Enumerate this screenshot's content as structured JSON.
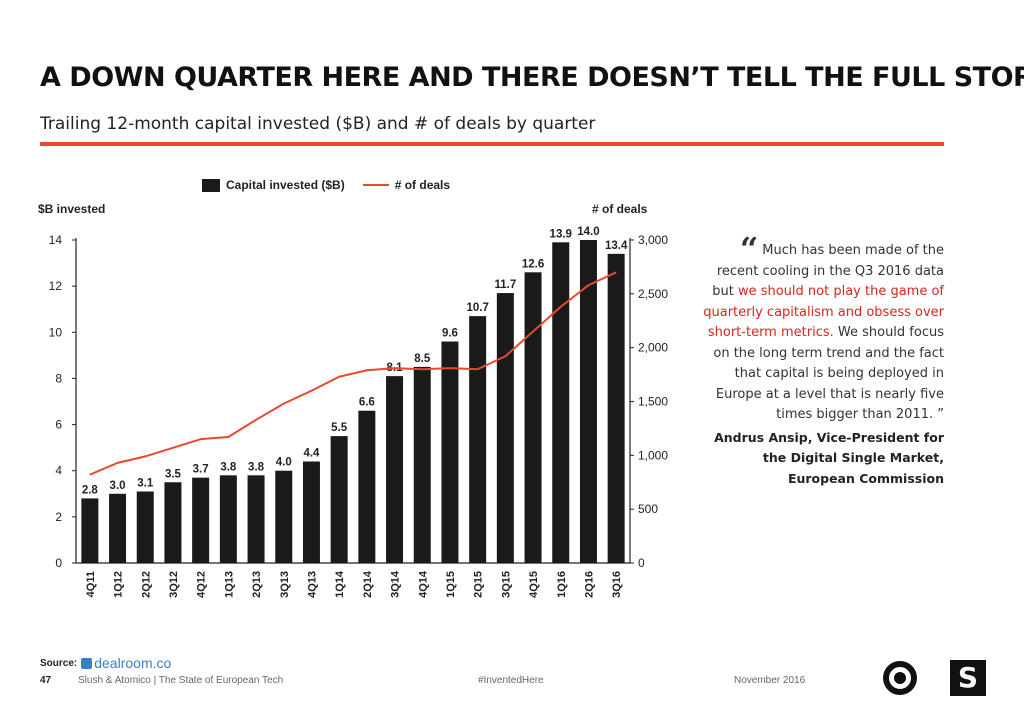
{
  "header": {
    "title": "A DOWN QUARTER HERE AND THERE DOESN’T TELL THE FULL STORY",
    "subtitle": "Trailing 12-month capital invested ($B) and # of deals by quarter"
  },
  "colors": {
    "accent": "#e8492d",
    "bar": "#1a1a1a",
    "highlight": "#d7261e"
  },
  "chart_data": {
    "type": "bar",
    "title": "",
    "categories": [
      "4Q11",
      "1Q12",
      "2Q12",
      "3Q12",
      "4Q12",
      "1Q13",
      "2Q13",
      "3Q13",
      "4Q13",
      "1Q14",
      "2Q14",
      "3Q14",
      "4Q14",
      "1Q15",
      "2Q15",
      "3Q15",
      "4Q15",
      "1Q16",
      "2Q16",
      "3Q16"
    ],
    "series": [
      {
        "name": "Capital invested ($B)",
        "type": "bar",
        "axis": "left",
        "values": [
          2.8,
          3.0,
          3.1,
          3.5,
          3.7,
          3.8,
          3.8,
          4.0,
          4.4,
          5.5,
          6.6,
          8.1,
          8.5,
          9.6,
          10.7,
          11.7,
          12.6,
          13.9,
          14.0,
          13.4
        ],
        "labels": [
          "2.8",
          "3.0",
          "3.1",
          "3.5",
          "3.7",
          "3.8",
          "3.8",
          "4.0",
          "4.4",
          "5.5",
          "6.6",
          "8.1",
          "8.5",
          "9.6",
          "10.7",
          "11.7",
          "12.6",
          "13.9",
          "14.0",
          "13.4"
        ]
      },
      {
        "name": "# of deals",
        "type": "line",
        "axis": "right",
        "values": [
          820,
          930,
          990,
          1070,
          1150,
          1170,
          1330,
          1480,
          1600,
          1730,
          1790,
          1810,
          1800,
          1810,
          1800,
          1920,
          2150,
          2380,
          2580,
          2700
        ]
      }
    ],
    "ylabel": "$B invested",
    "y2label": "# of deals",
    "ylim": [
      0,
      14
    ],
    "y2lim": [
      0,
      3000
    ],
    "yticks": [
      0,
      2,
      4,
      6,
      8,
      10,
      12,
      14
    ],
    "yticklabels": [
      "0",
      "2",
      "4",
      "6",
      "8",
      "10",
      "12",
      "14"
    ],
    "y2ticks": [
      0,
      500,
      1000,
      1500,
      2000,
      2500,
      3000
    ],
    "y2ticklabels": [
      "0",
      "500",
      "1,000",
      "1,500",
      "2,000",
      "2,500",
      "3,000"
    ],
    "legend": {
      "position": "top-center",
      "bar_label": "Capital invested ($B)",
      "line_label": "# of deals"
    },
    "grid": false
  },
  "quote": {
    "mark": "“",
    "text_pre": "Much has been made of the recent cooling in the Q3 2016 data but ",
    "text_highlight": "we should not play the game of quarterly capitalism and obsess over short-term metrics.",
    "text_post": " We should focus on the long term trend and the fact that capital is being deployed in Europe at a level that is nearly five times bigger than 2011. ”",
    "attribution": "Andrus Ansip, Vice-President for the Digital Single Market, European Commission"
  },
  "source": {
    "label": "Source:",
    "brand": "dealroom.co"
  },
  "footer": {
    "page_number": "47",
    "publication": "Slush & Atomico | The State of European Tech",
    "hashtag": "#InventedHere",
    "date": "November 2016"
  },
  "logos": {
    "square_glyph": "S",
    "circle_icon": "target-logo-icon",
    "square_icon": "slush-logo-icon"
  }
}
